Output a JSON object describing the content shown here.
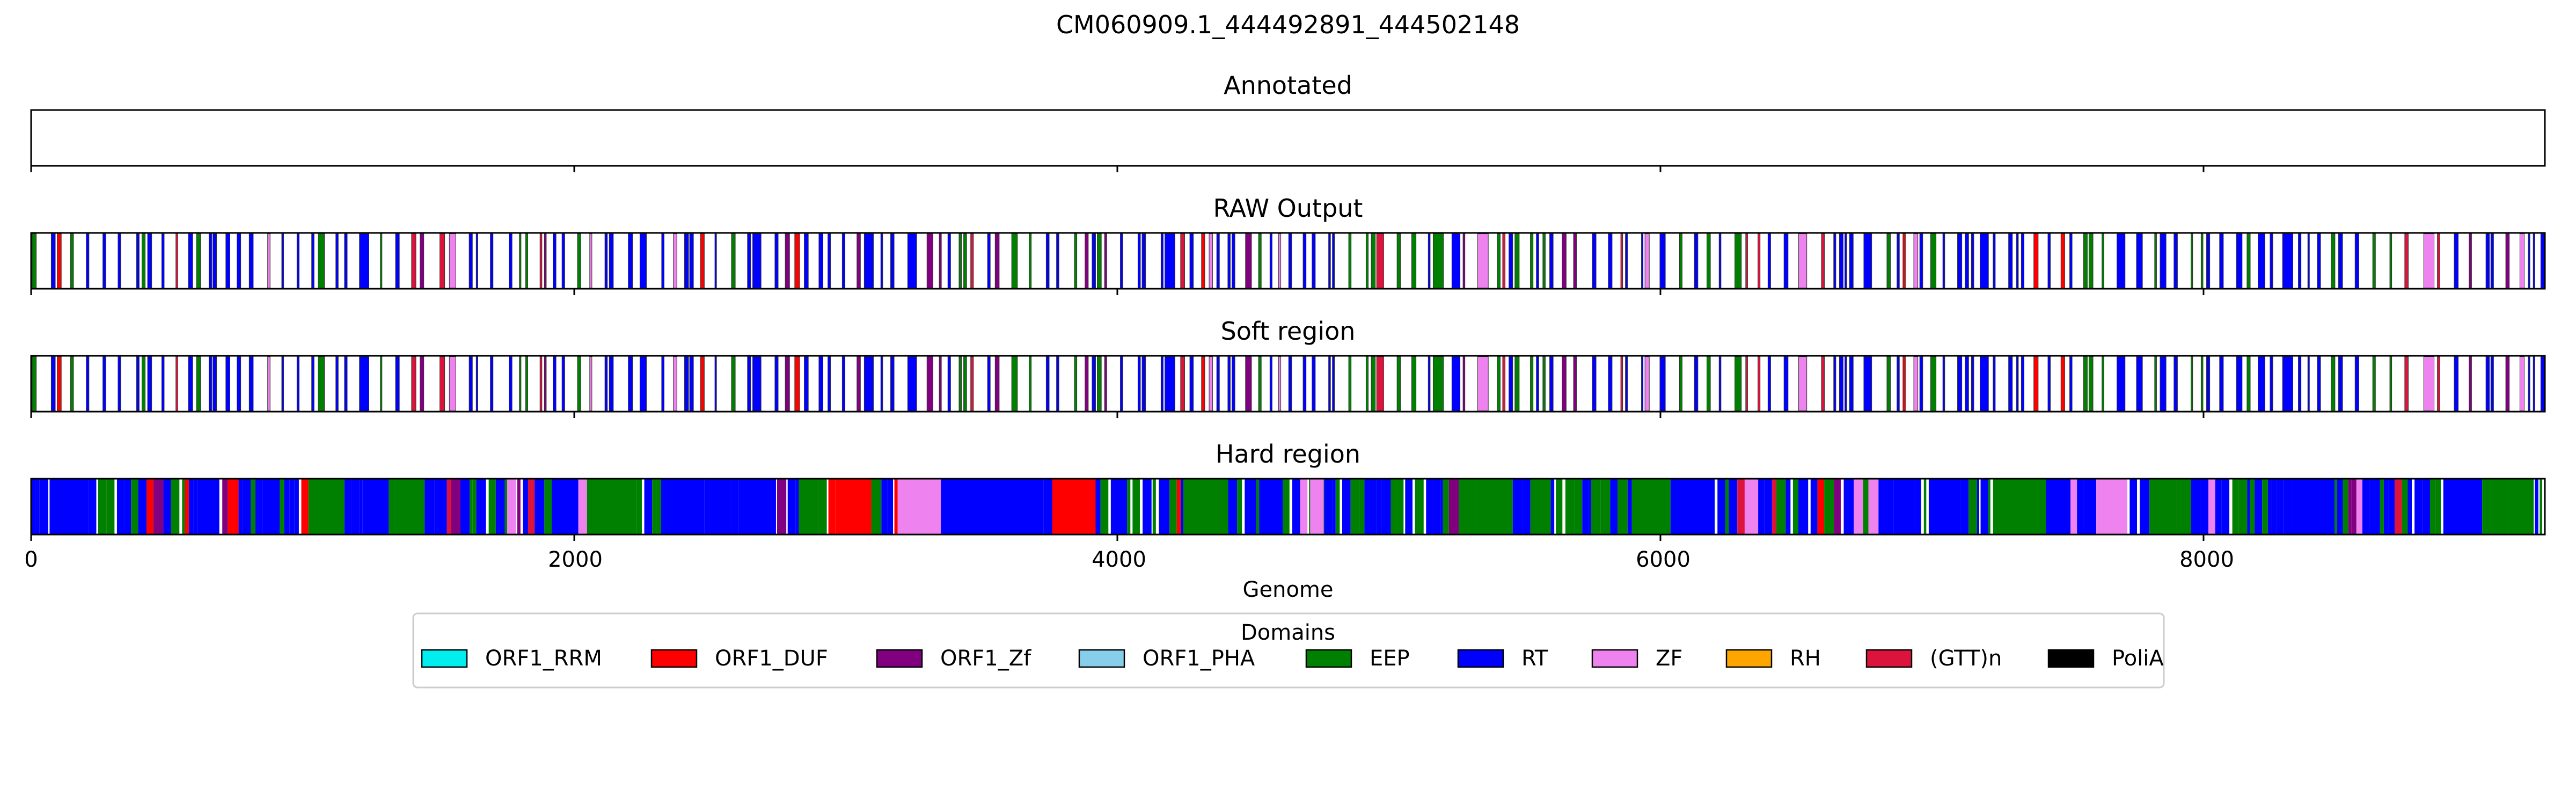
{
  "chart_data": {
    "type": "genome-track",
    "title": "CM060909.1_444492891_444502148",
    "xlabel": "Genome",
    "xlim": [
      0,
      9257
    ],
    "xticks": [
      0,
      2000,
      4000,
      6000,
      8000
    ],
    "xtick_labels": [
      "0",
      "2000",
      "4000",
      "6000",
      "8000"
    ],
    "legend": {
      "title": "Domains",
      "placement": "bottom-center",
      "entries": [
        {
          "label": "ORF1_RRM",
          "color": "#00eeee"
        },
        {
          "label": "ORF1_DUF",
          "color": "#ff0000"
        },
        {
          "label": "ORF1_Zf",
          "color": "#800080"
        },
        {
          "label": "ORF1_PHA",
          "color": "#87ceeb"
        },
        {
          "label": "EEP",
          "color": "#008000"
        },
        {
          "label": "RT",
          "color": "#0000ff"
        },
        {
          "label": "ZF",
          "color": "#ee82ee"
        },
        {
          "label": "RH",
          "color": "#ffa500"
        },
        {
          "label": "(GTT)n",
          "color": "#dc143c"
        },
        {
          "label": "PoliA",
          "color": "#000000"
        }
      ]
    },
    "panels": [
      {
        "title": "Annotated",
        "style": "empty",
        "segments": []
      },
      {
        "title": "RAW Output",
        "style": "sparse",
        "seed": 7,
        "segments": []
      },
      {
        "title": "Soft region",
        "style": "sparse",
        "seed": 7,
        "segments": []
      },
      {
        "title": "Hard region",
        "style": "dense",
        "seed": 21,
        "segments": []
      }
    ]
  }
}
